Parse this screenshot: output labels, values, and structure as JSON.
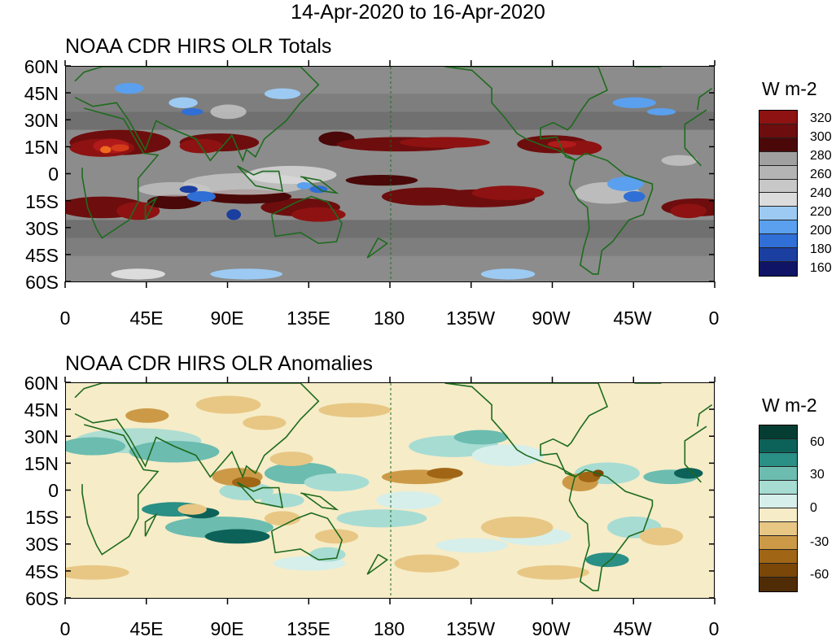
{
  "title": "14-Apr-2020 to 16-Apr-2020",
  "panels": [
    {
      "title": "NOAA CDR HIRS OLR Totals",
      "colorbar_title": "W m-2",
      "colorbar_labels": [
        "320",
        "300",
        "280",
        "260",
        "240",
        "220",
        "200",
        "180",
        "160"
      ]
    },
    {
      "title": "NOAA CDR HIRS OLR Anomalies",
      "colorbar_title": "W m-2",
      "colorbar_labels": [
        "60",
        "30",
        "0",
        "-30",
        "-60"
      ]
    }
  ],
  "lat_labels": [
    "60N",
    "45N",
    "30N",
    "15N",
    "0",
    "15S",
    "30S",
    "45S",
    "60S"
  ],
  "lon_labels": [
    "0",
    "45E",
    "90E",
    "135E",
    "180",
    "135W",
    "90W",
    "45W",
    "0"
  ],
  "colors": {
    "totals_scale": [
      "#101466",
      "#1a3fa0",
      "#2f6fd6",
      "#5aa0ee",
      "#9ccaf2",
      "#dcdcdc",
      "#c8c8c8",
      "#b4b4b4",
      "#a0a0a0",
      "#8c8c8c",
      "#787878",
      "#646464",
      "#505050",
      "#3c3c3c",
      "#2c2c2c",
      "#4a0808",
      "#6e0d0d",
      "#8e1212",
      "#b01a1a",
      "#d23a1a",
      "#ef6a1e"
    ],
    "anom_scale": [
      "#053d32",
      "#0c6258",
      "#2a8f85",
      "#6cbcb0",
      "#a7dcd3",
      "#d6efea",
      "#f6ecc8",
      "#e8c784",
      "#cc9a47",
      "#a06616",
      "#7a4708",
      "#4f2c05"
    ],
    "coastline": "#1e6b1e"
  }
}
